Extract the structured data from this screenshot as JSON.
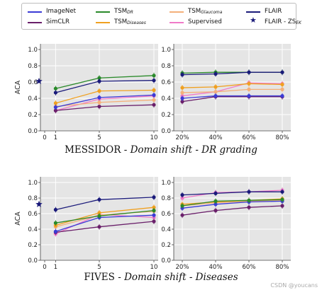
{
  "legend": {
    "items": [
      {
        "label": "ImageNet",
        "sub": "",
        "color": "#3b3bd6",
        "marker": "line"
      },
      {
        "label": "TSM",
        "sub": "DR",
        "color": "#2a8a2a",
        "marker": "line"
      },
      {
        "label": "TSM",
        "sub": "Glaucoma",
        "color": "#f4b07a",
        "marker": "line"
      },
      {
        "label": "FLAIR",
        "sub": "",
        "color": "#1a1a7a",
        "marker": "line"
      },
      {
        "label": "SimCLR",
        "sub": "",
        "color": "#6a1f6a",
        "marker": "line"
      },
      {
        "label": "TSM",
        "sub": "Diseases",
        "color": "#f0a020",
        "marker": "line"
      },
      {
        "label": "Supervised",
        "sub": "",
        "color": "#f07ac8",
        "marker": "line"
      },
      {
        "label": "FLAIR - ZS",
        "sub": "EK",
        "color": "#1a1a7a",
        "marker": "star"
      }
    ]
  },
  "titles": {
    "messidor": {
      "dataset": "MESSIDOR",
      "shift": "Domain shift - DR grading"
    },
    "fives": {
      "dataset": "FIVES",
      "shift": "Domain shift - Diseases"
    }
  },
  "watermark": "CSDN @youcans",
  "chart_data": [
    {
      "id": "messidor-left",
      "type": "line",
      "ylabel": "ACA",
      "ylim": [
        0,
        1.0
      ],
      "yticks": [
        "0.0",
        "0.2",
        "0.4",
        "0.6",
        "0.8",
        "1.0"
      ],
      "x": [
        1,
        5,
        10
      ],
      "xticks": [
        "0",
        "1",
        "5",
        "10"
      ],
      "grid": true,
      "zero_shot": 0.61,
      "series": [
        {
          "name": "ImageNet",
          "values": [
            0.29,
            0.41,
            0.44
          ]
        },
        {
          "name": "TSM_DR",
          "values": [
            0.52,
            0.65,
            0.68
          ]
        },
        {
          "name": "TSM_Glaucoma",
          "values": [
            0.3,
            0.35,
            0.38
          ]
        },
        {
          "name": "FLAIR",
          "values": [
            0.47,
            0.61,
            0.62
          ]
        },
        {
          "name": "SimCLR",
          "values": [
            0.25,
            0.3,
            0.32
          ]
        },
        {
          "name": "TSM_Diseases",
          "values": [
            0.34,
            0.49,
            0.5
          ]
        },
        {
          "name": "Supervised",
          "values": [
            0.25,
            0.39,
            0.43
          ]
        }
      ]
    },
    {
      "id": "messidor-right",
      "type": "line",
      "ylim": [
        0,
        1.0
      ],
      "yticks": [
        "0.0",
        "0.2",
        "0.4",
        "0.6",
        "0.8",
        "1.0"
      ],
      "x": [
        "20%",
        "40%",
        "60%",
        "80%"
      ],
      "grid": true,
      "series": [
        {
          "name": "ImageNet",
          "values": [
            0.4,
            0.43,
            0.43,
            0.43
          ]
        },
        {
          "name": "TSM_DR",
          "values": [
            0.71,
            0.72,
            0.72,
            0.72
          ]
        },
        {
          "name": "TSM_Glaucoma",
          "values": [
            0.47,
            0.48,
            0.51,
            0.51
          ]
        },
        {
          "name": "FLAIR",
          "values": [
            0.69,
            0.7,
            0.72,
            0.72
          ]
        },
        {
          "name": "SimCLR",
          "values": [
            0.36,
            0.42,
            0.42,
            0.42
          ]
        },
        {
          "name": "TSM_Diseases",
          "values": [
            0.53,
            0.54,
            0.58,
            0.57
          ]
        },
        {
          "name": "Supervised",
          "values": [
            0.43,
            0.48,
            0.59,
            0.58
          ]
        }
      ]
    },
    {
      "id": "fives-left",
      "type": "line",
      "ylabel": "ACA",
      "ylim": [
        0,
        1.0
      ],
      "yticks": [
        "0.0",
        "0.2",
        "0.4",
        "0.6",
        "0.8",
        "1.0"
      ],
      "x": [
        1,
        5,
        10
      ],
      "xticks": [
        "0",
        "1",
        "5",
        "10"
      ],
      "grid": true,
      "zero_shot": 0.72,
      "series": [
        {
          "name": "ImageNet",
          "values": [
            0.37,
            0.55,
            0.58
          ]
        },
        {
          "name": "TSM_DR",
          "values": [
            0.48,
            0.57,
            0.64
          ]
        },
        {
          "name": "TSM_Glaucoma",
          "values": [
            0.43,
            0.58,
            0.63
          ]
        },
        {
          "name": "FLAIR",
          "values": [
            0.65,
            0.78,
            0.81
          ]
        },
        {
          "name": "SimCLR",
          "values": [
            0.36,
            0.43,
            0.5
          ]
        },
        {
          "name": "TSM_Diseases",
          "values": [
            0.45,
            0.61,
            0.68
          ]
        },
        {
          "name": "Supervised",
          "values": [
            0.34,
            0.59,
            0.55
          ]
        }
      ]
    },
    {
      "id": "fives-right",
      "type": "line",
      "ylim": [
        0,
        1.0
      ],
      "yticks": [
        "0.0",
        "0.2",
        "0.4",
        "0.6",
        "0.8",
        "1.0"
      ],
      "x": [
        "20%",
        "40%",
        "60%",
        "80%"
      ],
      "grid": true,
      "series": [
        {
          "name": "ImageNet",
          "values": [
            0.67,
            0.72,
            0.75,
            0.76
          ]
        },
        {
          "name": "TSM_DR",
          "values": [
            0.7,
            0.76,
            0.77,
            0.78
          ]
        },
        {
          "name": "TSM_Glaucoma",
          "values": [
            0.7,
            0.74,
            0.76,
            0.77
          ]
        },
        {
          "name": "FLAIR",
          "values": [
            0.84,
            0.86,
            0.88,
            0.88
          ]
        },
        {
          "name": "SimCLR",
          "values": [
            0.58,
            0.64,
            0.68,
            0.7
          ]
        },
        {
          "name": "TSM_Diseases",
          "values": [
            0.72,
            0.75,
            0.77,
            0.79
          ]
        },
        {
          "name": "Supervised",
          "values": [
            0.8,
            0.87,
            0.88,
            0.9
          ]
        }
      ]
    }
  ]
}
